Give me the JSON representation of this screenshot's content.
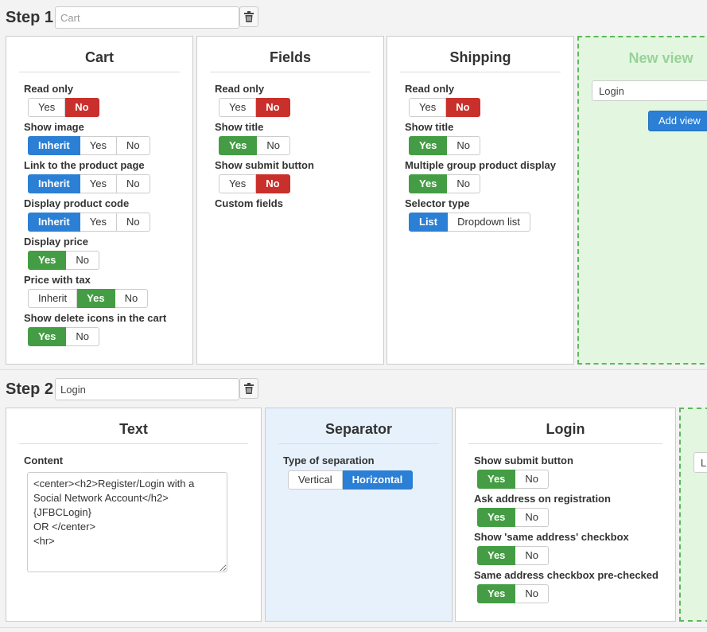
{
  "step1": {
    "label": "Step 1",
    "name_placeholder": "Cart",
    "panels": {
      "cart": {
        "title": "Cart",
        "fields": [
          {
            "label": "Read only",
            "options": [
              "Yes",
              "No"
            ],
            "selected": "No"
          },
          {
            "label": "Show image",
            "options": [
              "Inherit",
              "Yes",
              "No"
            ],
            "selected": "Inherit"
          },
          {
            "label": "Link to the product page",
            "options": [
              "Inherit",
              "Yes",
              "No"
            ],
            "selected": "Inherit"
          },
          {
            "label": "Display product code",
            "options": [
              "Inherit",
              "Yes",
              "No"
            ],
            "selected": "Inherit"
          },
          {
            "label": "Display price",
            "options": [
              "Yes",
              "No"
            ],
            "selected": "Yes"
          },
          {
            "label": "Price with tax",
            "options": [
              "Inherit",
              "Yes",
              "No"
            ],
            "selected": "Yes"
          },
          {
            "label": "Show delete icons in the cart",
            "options": [
              "Yes",
              "No"
            ],
            "selected": "Yes"
          }
        ]
      },
      "fields": {
        "title": "Fields",
        "fields": [
          {
            "label": "Read only",
            "options": [
              "Yes",
              "No"
            ],
            "selected": "No"
          },
          {
            "label": "Show title",
            "options": [
              "Yes",
              "No"
            ],
            "selected": "Yes"
          },
          {
            "label": "Show submit button",
            "options": [
              "Yes",
              "No"
            ],
            "selected": "No"
          }
        ],
        "custom_fields_label": "Custom fields"
      },
      "shipping": {
        "title": "Shipping",
        "fields": [
          {
            "label": "Read only",
            "options": [
              "Yes",
              "No"
            ],
            "selected": "No"
          },
          {
            "label": "Show title",
            "options": [
              "Yes",
              "No"
            ],
            "selected": "Yes"
          },
          {
            "label": "Multiple group product display",
            "options": [
              "Yes",
              "No"
            ],
            "selected": "Yes"
          },
          {
            "label": "Selector type",
            "options": [
              "List",
              "Dropdown list"
            ],
            "selected": "List"
          }
        ]
      },
      "new_view": {
        "title": "New view",
        "select_value": "Login",
        "add_label": "Add view"
      }
    }
  },
  "step2": {
    "label": "Step 2",
    "name_value": "Login",
    "panels": {
      "text": {
        "title": "Text",
        "content_label": "Content",
        "content_value": "<center><h2>Register/Login with a Social Network Account</h2>\n{JFBCLogin}\nOR </center>\n<hr>"
      },
      "separator": {
        "title": "Separator",
        "type_label": "Type of separation",
        "options": [
          "Vertical",
          "Horizontal"
        ],
        "selected": "Horizontal"
      },
      "login": {
        "title": "Login",
        "fields": [
          {
            "label": "Show submit button",
            "options": [
              "Yes",
              "No"
            ],
            "selected": "Yes"
          },
          {
            "label": "Ask address on registration",
            "options": [
              "Yes",
              "No"
            ],
            "selected": "Yes"
          },
          {
            "label": "Show 'same address' checkbox",
            "options": [
              "Yes",
              "No"
            ],
            "selected": "Yes"
          },
          {
            "label": "Same address checkbox pre-checked",
            "options": [
              "Yes",
              "No"
            ],
            "selected": "Yes"
          }
        ]
      },
      "new_view": {
        "select_value": "L"
      }
    }
  },
  "colors": {
    "selected_no": "#c9302c",
    "selected_yes": "#449d44",
    "selected_inherit": "#2b7fd4",
    "new_view_bg": "#e3f7e0",
    "separator_bg": "#e6f1fc"
  }
}
